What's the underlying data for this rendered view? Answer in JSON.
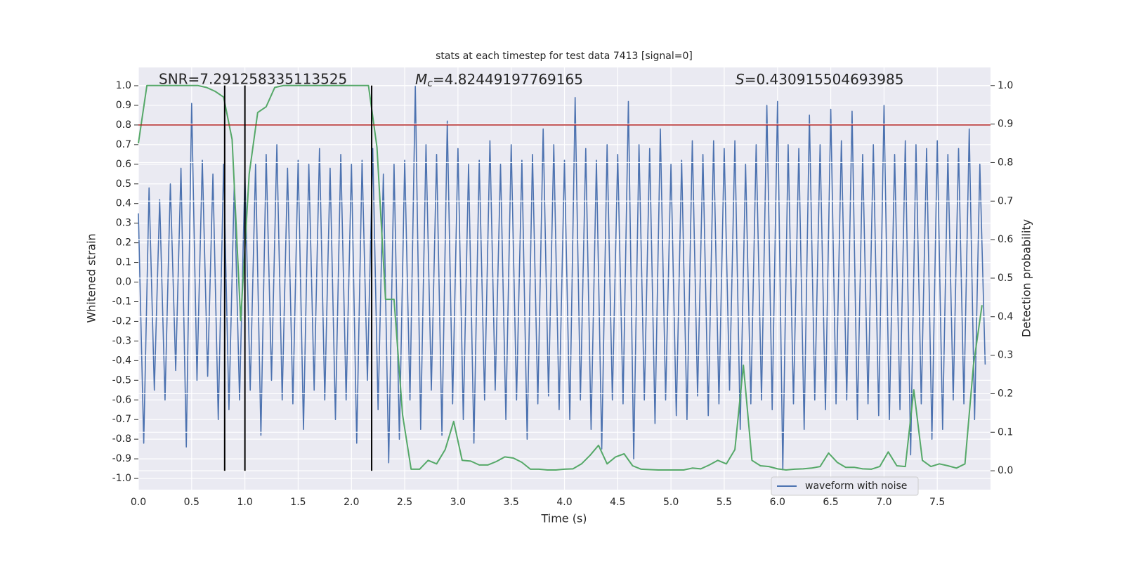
{
  "chart_data": {
    "type": "line",
    "title": "stats at each timestep for test data 7413 [signal=0]",
    "xlabel": "Time (s)",
    "ylabel": "Whitened strain",
    "y2label": "Detection probability",
    "annotations": {
      "snr": {
        "text": "SNR=7.291258335113525"
      },
      "mc": {
        "symbol": "M",
        "subscript": "c",
        "text": "=4.82449197769165"
      },
      "s": {
        "symbol": "S",
        "text": "=0.430915504693985"
      }
    },
    "xlim": [
      0,
      8
    ],
    "ylim": [
      -1.057,
      1.093
    ],
    "y2lim": [
      -0.049,
      1.047
    ],
    "xticks": [
      {
        "value": 0,
        "label": "0.0"
      },
      0.5,
      {
        "value": 1,
        "label": "1.0"
      },
      1.5,
      {
        "value": 2,
        "label": "2.0"
      },
      2.5,
      {
        "value": 3,
        "label": "3.0"
      },
      3.5,
      {
        "value": 4,
        "label": "4.0"
      },
      4.5,
      {
        "value": 5,
        "label": "5.0"
      },
      5.5,
      {
        "value": 6,
        "label": "6.0"
      },
      6.5,
      {
        "value": 7,
        "label": "7.0"
      },
      7.5
    ],
    "yticks": [
      {
        "value": -1,
        "label": "-1.0"
      },
      -0.9,
      -0.8,
      -0.7,
      -0.6,
      -0.5,
      -0.4,
      -0.3,
      -0.2,
      -0.1,
      {
        "value": 0,
        "label": "0.0"
      },
      0.1,
      0.2,
      0.3,
      0.4,
      0.5,
      0.6,
      0.7,
      0.8,
      0.9,
      {
        "value": 1,
        "label": "1.0"
      }
    ],
    "y2ticks": [
      {
        "value": 0,
        "label": "0.0"
      },
      0.1,
      0.2,
      0.3,
      0.4,
      0.5,
      0.6,
      0.7,
      0.8,
      0.9,
      {
        "value": 1,
        "label": "1.0"
      }
    ],
    "grid": true,
    "legend": "lower right",
    "hline": {
      "y": 0.8,
      "color": "#b22222"
    },
    "vlines": {
      "x": [
        0.81,
        1.0,
        2.19
      ],
      "ymin": 0,
      "ymax": 1,
      "axis": "y2",
      "color": "#000000"
    },
    "series": [
      {
        "name": "waveform with noise",
        "color": "#4c72b0",
        "x": [
          0,
          0.05,
          0.1,
          0.15,
          0.2,
          0.25,
          0.3,
          0.35,
          0.4,
          0.45,
          0.5,
          0.55,
          0.6,
          0.65,
          0.7,
          0.75,
          0.8,
          0.85,
          0.9,
          0.95,
          1,
          1.05,
          1.1,
          1.15,
          1.2,
          1.25,
          1.3,
          1.35,
          1.4,
          1.45,
          1.5,
          1.55,
          1.6,
          1.65,
          1.7,
          1.75,
          1.8,
          1.85,
          1.9,
          1.95,
          2,
          2.05,
          2.1,
          2.15,
          2.2,
          2.25,
          2.3,
          2.35,
          2.4,
          2.45,
          2.5,
          2.55,
          2.6,
          2.65,
          2.7,
          2.75,
          2.8,
          2.85,
          2.9,
          2.95,
          3,
          3.05,
          3.1,
          3.15,
          3.2,
          3.25,
          3.3,
          3.35,
          3.4,
          3.45,
          3.5,
          3.55,
          3.6,
          3.65,
          3.7,
          3.75,
          3.8,
          3.85,
          3.9,
          3.95,
          4,
          4.05,
          4.1,
          4.15,
          4.2,
          4.25,
          4.3,
          4.35,
          4.4,
          4.45,
          4.5,
          4.55,
          4.6,
          4.65,
          4.7,
          4.75,
          4.8,
          4.85,
          4.9,
          4.95,
          5,
          5.05,
          5.1,
          5.15,
          5.2,
          5.25,
          5.3,
          5.35,
          5.4,
          5.45,
          5.5,
          5.55,
          5.6,
          5.65,
          5.7,
          5.75,
          5.8,
          5.85,
          5.9,
          5.95,
          6,
          6.05,
          6.1,
          6.15,
          6.2,
          6.25,
          6.3,
          6.35,
          6.4,
          6.45,
          6.5,
          6.55,
          6.6,
          6.65,
          6.7,
          6.75,
          6.8,
          6.85,
          6.9,
          6.95,
          7,
          7.05,
          7.1,
          7.15,
          7.2,
          7.25,
          7.3,
          7.35,
          7.4,
          7.45,
          7.5,
          7.55,
          7.6,
          7.65,
          7.7,
          7.75,
          7.8,
          7.85,
          7.9,
          7.95
        ],
        "values": [
          0.35,
          -0.82,
          0.48,
          -0.55,
          0.42,
          -0.6,
          0.5,
          -0.45,
          0.58,
          -0.84,
          0.91,
          -0.5,
          0.62,
          -0.48,
          0.55,
          -0.7,
          0.6,
          -0.65,
          0.5,
          -0.6,
          0.55,
          -0.55,
          0.6,
          -0.78,
          0.65,
          -0.5,
          0.7,
          -0.6,
          0.58,
          -0.62,
          0.62,
          -0.75,
          0.6,
          -0.55,
          0.68,
          -0.6,
          0.58,
          -0.7,
          0.65,
          -0.6,
          0.6,
          -0.82,
          0.62,
          -0.5,
          0.68,
          -0.65,
          0.55,
          -0.92,
          0.6,
          -0.8,
          0.62,
          -0.6,
          1.0,
          -0.75,
          0.7,
          -0.55,
          0.65,
          -0.78,
          0.82,
          -0.62,
          0.68,
          -0.7,
          0.6,
          -0.82,
          0.62,
          -0.6,
          0.72,
          -0.55,
          0.6,
          -0.7,
          0.7,
          -0.6,
          0.62,
          -0.8,
          0.65,
          -0.62,
          0.78,
          -0.58,
          0.7,
          -0.65,
          0.62,
          -0.7,
          0.94,
          -0.6,
          0.68,
          -0.75,
          0.62,
          -0.85,
          0.7,
          -0.6,
          0.65,
          -0.62,
          0.92,
          -0.9,
          0.7,
          -0.6,
          0.68,
          -0.72,
          0.78,
          -0.6,
          0.6,
          -0.68,
          0.62,
          -0.7,
          0.72,
          -0.58,
          0.65,
          -0.68,
          0.72,
          -0.62,
          0.68,
          -0.55,
          0.72,
          -0.75,
          0.6,
          -0.62,
          0.7,
          -0.6,
          0.9,
          -0.65,
          0.92,
          -0.96,
          0.7,
          -0.62,
          0.68,
          -0.75,
          0.85,
          -0.6,
          0.7,
          -0.65,
          0.88,
          -0.62,
          0.72,
          -0.6,
          0.87,
          -0.7,
          0.65,
          -0.62,
          0.7,
          -0.68,
          0.9,
          -0.7,
          0.65,
          -0.65,
          0.72,
          -0.88,
          0.7,
          -0.62,
          0.68,
          -0.8,
          0.72,
          -0.75,
          0.65,
          -0.6,
          0.68,
          -0.62,
          0.78,
          -0.7,
          0.6,
          -0.42
        ]
      },
      {
        "color": "#55a868",
        "axis": "y2",
        "x": [
          0,
          0.08,
          0.16,
          0.24,
          0.32,
          0.4,
          0.48,
          0.56,
          0.64,
          0.72,
          0.8,
          0.88,
          0.96,
          1.04,
          1.12,
          1.2,
          1.28,
          1.36,
          1.44,
          1.52,
          1.6,
          1.68,
          1.76,
          1.84,
          1.92,
          2,
          2.08,
          2.16,
          2.24,
          2.32,
          2.4,
          2.48,
          2.56,
          2.64,
          2.72,
          2.8,
          2.88,
          2.96,
          3.04,
          3.12,
          3.2,
          3.28,
          3.36,
          3.44,
          3.52,
          3.6,
          3.68,
          3.76,
          3.84,
          3.92,
          4,
          4.08,
          4.16,
          4.24,
          4.32,
          4.4,
          4.48,
          4.56,
          4.64,
          4.72,
          4.8,
          4.88,
          4.96,
          5.04,
          5.12,
          5.2,
          5.28,
          5.36,
          5.44,
          5.52,
          5.6,
          5.68,
          5.76,
          5.84,
          5.92,
          6,
          6.08,
          6.16,
          6.24,
          6.32,
          6.4,
          6.48,
          6.56,
          6.64,
          6.72,
          6.8,
          6.88,
          6.96,
          7.04,
          7.12,
          7.2,
          7.28,
          7.36,
          7.44,
          7.52,
          7.6,
          7.68,
          7.76,
          7.84,
          7.92
        ],
        "values": [
          0.85,
          1.0,
          1.0,
          1.0,
          1.0,
          1.0,
          1.0,
          1.0,
          0.995,
          0.985,
          0.97,
          0.86,
          0.39,
          0.77,
          0.93,
          0.945,
          0.995,
          1.0,
          1.0,
          1.0,
          1.0,
          1.0,
          1.0,
          1.0,
          1.0,
          1.0,
          1.0,
          1.0,
          0.84,
          0.445,
          0.445,
          0.146,
          0.004,
          0.004,
          0.027,
          0.018,
          0.055,
          0.128,
          0.027,
          0.025,
          0.015,
          0.015,
          0.024,
          0.036,
          0.033,
          0.022,
          0.004,
          0.004,
          0.002,
          0.002,
          0.004,
          0.005,
          0.018,
          0.04,
          0.066,
          0.018,
          0.036,
          0.044,
          0.013,
          0.004,
          0.003,
          0.002,
          0.002,
          0.002,
          0.002,
          0.007,
          0.005,
          0.015,
          0.027,
          0.018,
          0.055,
          0.274,
          0.027,
          0.013,
          0.011,
          0.005,
          0.002,
          0.004,
          0.005,
          0.007,
          0.011,
          0.046,
          0.022,
          0.009,
          0.009,
          0.005,
          0.004,
          0.011,
          0.049,
          0.013,
          0.011,
          0.21,
          0.027,
          0.011,
          0.018,
          0.013,
          0.007,
          0.018,
          0.274,
          0.43
        ]
      }
    ]
  }
}
